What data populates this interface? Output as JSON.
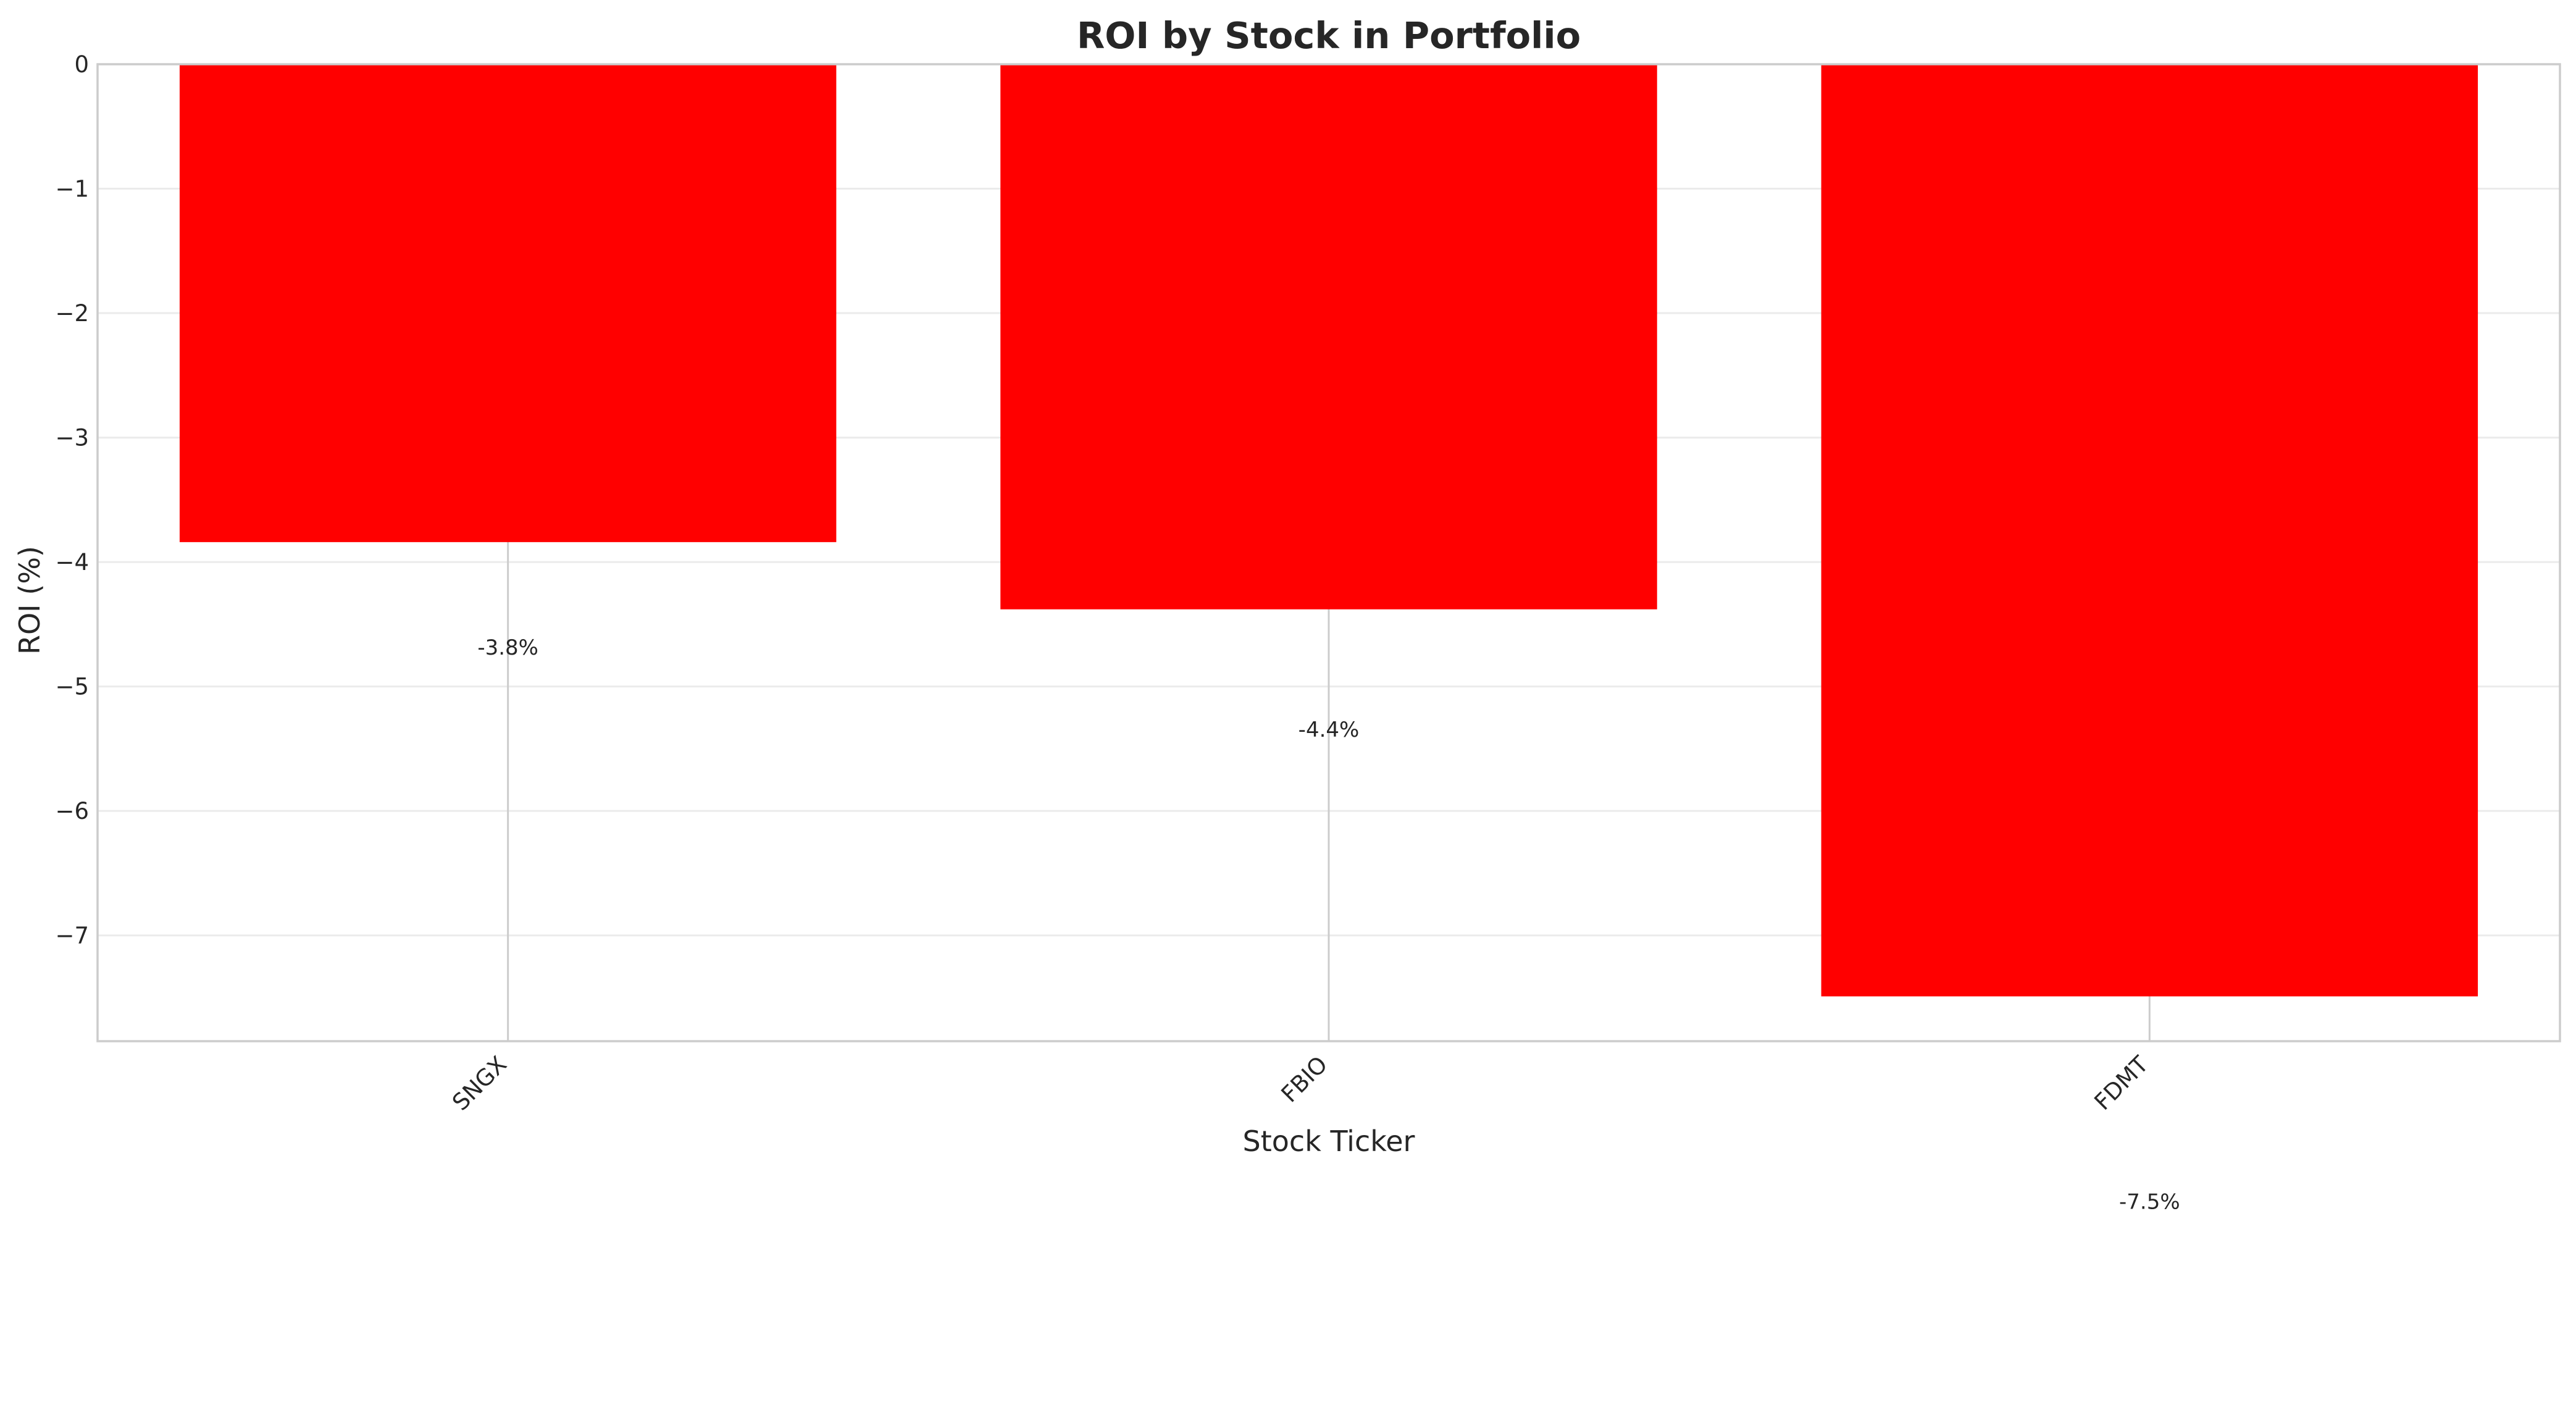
{
  "chart_data": {
    "type": "bar",
    "title": "ROI by Stock in Portfolio",
    "xlabel": "Stock Ticker",
    "ylabel": "ROI (%)",
    "categories": [
      "SNGX",
      "FBIO",
      "FDMT"
    ],
    "values": [
      -3.84,
      -4.38,
      -7.49
    ],
    "data_labels": [
      "-3.8%",
      "-4.4%",
      "-7.5%"
    ],
    "ylim": [
      -7.85,
      0
    ],
    "yticks": [
      0,
      -1,
      -2,
      -3,
      -4,
      -5,
      -6,
      -7
    ],
    "ytick_labels": [
      "0",
      "−1",
      "−2",
      "−3",
      "−4",
      "−5",
      "−6",
      "−7"
    ],
    "grid": true,
    "bar_color": "#ff0000"
  }
}
